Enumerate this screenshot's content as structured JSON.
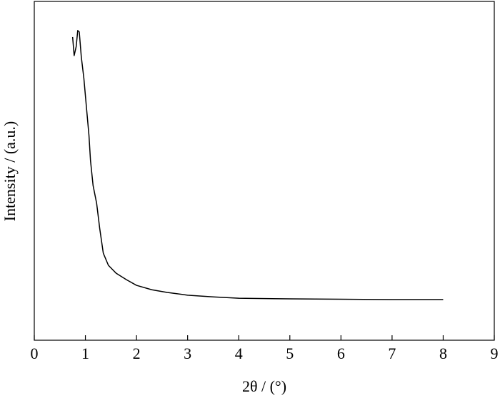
{
  "chart_data": {
    "type": "line",
    "x_label": "2θ / (°)",
    "y_label": "Intensity / (a.u.)",
    "xlim": [
      0,
      9
    ],
    "xticks": [
      0,
      1,
      2,
      3,
      4,
      5,
      6,
      7,
      8,
      9
    ],
    "ylim": [
      0,
      100
    ],
    "series": [
      {
        "color": "#000000",
        "x": [
          0.75,
          0.78,
          0.82,
          0.85,
          0.88,
          0.92,
          0.97,
          1.02,
          1.07,
          1.1,
          1.15,
          1.22,
          1.28,
          1.35,
          1.45,
          1.6,
          1.8,
          2.0,
          2.3,
          2.6,
          3.0,
          3.5,
          4,
          5,
          6,
          7,
          8
        ],
        "values": [
          89.5,
          84,
          86.7,
          91.4,
          91,
          83.6,
          77.3,
          68.8,
          60.4,
          53,
          45.7,
          40.4,
          33,
          25.7,
          22.1,
          19.8,
          17.9,
          16.2,
          14.9,
          14.1,
          13.3,
          12.8,
          12.4,
          12.2,
          12.1,
          12.0,
          12.0
        ]
      }
    ]
  }
}
